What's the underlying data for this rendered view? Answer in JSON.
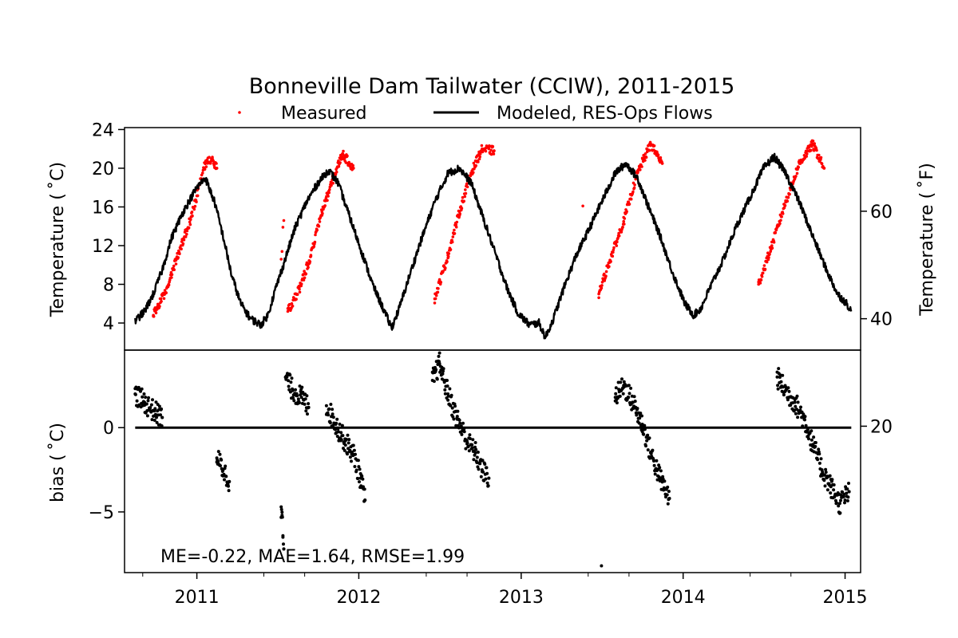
{
  "chart_data": {
    "type": "line",
    "title": "Bonneville Dam Tailwater (CCIW), 2011-2015",
    "legend": {
      "placement": "top-center",
      "entries": [
        {
          "name": "Measured",
          "marker": "dot",
          "color": "#ff0000"
        },
        {
          "name": "Modeled, RES-Ops Flows",
          "marker": "line",
          "color": "#000000"
        }
      ]
    },
    "x_axis": {
      "tick_labels": [
        "2011",
        "2012",
        "2013",
        "2014",
        "2015"
      ],
      "tick_years": [
        2011,
        2012,
        2013,
        2014,
        2015
      ],
      "range": [
        "2010-07-22",
        "2015-02-05"
      ]
    },
    "top_panel": {
      "ylabel_left": "Temperature ($^\\circ$C)",
      "ylabel_right": "Temperature ($^\\circ$F)",
      "ylabel_left_display": "Temperature ( ˚C)",
      "ylabel_right_display": "Temperature ( ˚F)",
      "ylim": [
        1.2,
        24.2
      ],
      "yticks_left": [
        "4",
        "8",
        "12",
        "16",
        "20",
        "24"
      ],
      "yticks_left_values": [
        4,
        8,
        12,
        16,
        20,
        24
      ],
      "yticks_right": [
        "20",
        "40",
        "60"
      ],
      "yticks_right_values": [
        20,
        40,
        60
      ],
      "series": [
        {
          "name": "Modeled, RES-Ops Flows",
          "color": "#000000",
          "points": [
            [
              "2010-08-15",
              4.2
            ],
            [
              "2010-09-05",
              5.2
            ],
            [
              "2010-09-25",
              7.0
            ],
            [
              "2010-10-15",
              9.5
            ],
            [
              "2010-11-05",
              12.8
            ],
            [
              "2010-12-01",
              15.5
            ],
            [
              "2011-01-01",
              18.0
            ],
            [
              "2011-01-20",
              19.0
            ],
            [
              "2011-02-10",
              16.5
            ],
            [
              "2011-03-01",
              13.0
            ],
            [
              "2011-03-20",
              9.0
            ],
            [
              "2011-04-10",
              6.0
            ],
            [
              "2011-05-01",
              4.5
            ],
            [
              "2011-05-25",
              3.8
            ],
            [
              "2011-06-10",
              4.8
            ],
            [
              "2011-06-25",
              7.2
            ],
            [
              "2011-07-15",
              10.0
            ],
            [
              "2011-08-10",
              13.8
            ],
            [
              "2011-09-05",
              16.5
            ],
            [
              "2011-10-01",
              18.5
            ],
            [
              "2011-10-25",
              19.8
            ],
            [
              "2011-11-15",
              18.5
            ],
            [
              "2011-12-15",
              14.5
            ],
            [
              "2012-01-10",
              11.0
            ],
            [
              "2012-02-01",
              8.0
            ],
            [
              "2012-02-20",
              6.0
            ],
            [
              "2012-03-15",
              3.5
            ],
            [
              "2012-04-01",
              5.5
            ],
            [
              "2012-04-25",
              9.0
            ],
            [
              "2012-05-20",
              12.5
            ],
            [
              "2012-06-20",
              16.5
            ],
            [
              "2012-07-20",
              19.5
            ],
            [
              "2012-08-15",
              20.0
            ],
            [
              "2012-09-10",
              18.5
            ],
            [
              "2012-10-10",
              14.5
            ],
            [
              "2012-11-05",
              11.0
            ],
            [
              "2012-12-01",
              7.5
            ],
            [
              "2012-12-25",
              5.0
            ],
            [
              "2013-01-20",
              3.8
            ],
            [
              "2013-02-10",
              4.0
            ],
            [
              "2013-02-25",
              2.5
            ],
            [
              "2013-03-15",
              4.5
            ],
            [
              "2013-04-10",
              8.0
            ],
            [
              "2013-05-05",
              11.0
            ],
            [
              "2013-06-01",
              13.5
            ],
            [
              "2013-07-01",
              16.5
            ],
            [
              "2013-08-01",
              19.5
            ],
            [
              "2013-08-25",
              20.5
            ],
            [
              "2013-09-20",
              19.0
            ],
            [
              "2013-10-15",
              16.0
            ],
            [
              "2013-11-10",
              13.0
            ],
            [
              "2013-12-10",
              9.0
            ],
            [
              "2014-01-05",
              6.0
            ],
            [
              "2014-01-25",
              4.8
            ],
            [
              "2014-02-10",
              5.5
            ],
            [
              "2014-03-01",
              7.5
            ],
            [
              "2014-04-01",
              10.5
            ],
            [
              "2014-05-01",
              14.0
            ],
            [
              "2014-06-01",
              17.0
            ],
            [
              "2014-07-01",
              20.0
            ],
            [
              "2014-07-25",
              21.2
            ],
            [
              "2014-08-20",
              19.5
            ],
            [
              "2014-09-20",
              16.5
            ],
            [
              "2014-10-20",
              13.0
            ],
            [
              "2014-11-20",
              9.5
            ],
            [
              "2014-12-15",
              7.0
            ],
            [
              "2015-01-05",
              6.0
            ],
            [
              "2015-01-15",
              5.2
            ]
          ]
        },
        {
          "name": "Measured",
          "color": "#ff0000",
          "points": [
            [
              "2010-09-25",
              4.8
            ],
            [
              "2010-10-20",
              7.0
            ],
            [
              "2010-11-15",
              10.5
            ],
            [
              "2010-12-20",
              15.0
            ],
            [
              "2011-01-20",
              20.5
            ],
            [
              "2011-02-05",
              21.0
            ],
            [
              "2011-02-15",
              20.0
            ],
            [
              "2011-07-10",
              10.6
            ],
            [
              "2011-07-12",
              11.4
            ],
            [
              "2011-07-14",
              13.9
            ],
            [
              "2011-07-16",
              14.6
            ],
            [
              "2011-07-25",
              5.2
            ],
            [
              "2011-08-20",
              7.5
            ],
            [
              "2011-09-15",
              11.0
            ],
            [
              "2011-10-10",
              15.5
            ],
            [
              "2011-11-05",
              19.0
            ],
            [
              "2011-11-25",
              21.5
            ],
            [
              "2011-12-20",
              20.0
            ],
            [
              "2012-06-20",
              6.5
            ],
            [
              "2012-07-20",
              11.0
            ],
            [
              "2012-08-15",
              15.5
            ],
            [
              "2012-09-10",
              19.5
            ],
            [
              "2012-10-05",
              22.0
            ],
            [
              "2012-11-01",
              21.8
            ],
            [
              "2013-05-20",
              16.1
            ],
            [
              "2013-06-25",
              7.0
            ],
            [
              "2013-07-20",
              10.5
            ],
            [
              "2013-08-20",
              14.5
            ],
            [
              "2013-09-20",
              19.5
            ],
            [
              "2013-10-20",
              22.5
            ],
            [
              "2013-11-15",
              20.5
            ],
            [
              "2014-06-20",
              8.0
            ],
            [
              "2014-07-20",
              12.0
            ],
            [
              "2014-08-20",
              16.5
            ],
            [
              "2014-09-20",
              20.5
            ],
            [
              "2014-10-20",
              22.5
            ],
            [
              "2014-11-15",
              20.0
            ]
          ]
        }
      ]
    },
    "bottom_panel": {
      "ylabel": "bias ($^\\circ$C)",
      "ylabel_display": "bias ( ˚C)",
      "ylim": [
        -8.6,
        4.6
      ],
      "yticks": [
        "−5",
        "0"
      ],
      "ytick_values": [
        -5,
        0
      ],
      "zero_line": {
        "y": 0,
        "from": "2010-08-15",
        "to": "2015-01-15"
      },
      "annotation": "ME=-0.22, MAE=1.64, RMSE=1.99",
      "series": [
        {
          "name": "bias",
          "color": "#000000",
          "segments": [
            [
              [
                "2010-08-15",
                2.0
              ],
              [
                "2010-09-05",
                1.5
              ],
              [
                "2010-09-25",
                1.0
              ],
              [
                "2010-10-15",
                0.6
              ]
            ],
            [
              [
                "2011-02-15",
                -1.8
              ],
              [
                "2011-03-01",
                -2.5
              ],
              [
                "2011-03-15",
                -3.2
              ]
            ],
            [
              [
                "2011-07-10",
                -4.7
              ],
              [
                "2011-07-12",
                -5.2
              ],
              [
                "2011-07-14",
                -6.5
              ],
              [
                "2011-07-16",
                -7.2
              ]
            ],
            [
              [
                "2011-07-20",
                3.0
              ],
              [
                "2011-08-05",
                2.2
              ],
              [
                "2011-08-25",
                1.8
              ],
              [
                "2011-09-10",
                1.2
              ]
            ],
            [
              [
                "2011-10-20",
                1.3
              ],
              [
                "2011-11-10",
                0.2
              ],
              [
                "2011-12-01",
                -0.8
              ],
              [
                "2011-12-20",
                -1.6
              ],
              [
                "2012-01-05",
                -3.0
              ],
              [
                "2012-01-15",
                -4.3
              ]
            ],
            [
              [
                "2012-06-15",
                2.8
              ],
              [
                "2012-07-01",
                3.8
              ],
              [
                "2012-07-20",
                2.0
              ],
              [
                "2012-08-10",
                0.5
              ],
              [
                "2012-09-01",
                -0.8
              ],
              [
                "2012-09-20",
                -1.5
              ],
              [
                "2012-10-05",
                -2.5
              ],
              [
                "2012-10-20",
                -3.0
              ]
            ],
            [
              [
                "2013-07-01",
                -8.2
              ]
            ],
            [
              [
                "2013-08-01",
                1.8
              ],
              [
                "2013-08-20",
                2.5
              ],
              [
                "2013-09-10",
                1.5
              ],
              [
                "2013-10-01",
                0.2
              ],
              [
                "2013-10-20",
                -1.5
              ],
              [
                "2013-11-10",
                -3.0
              ],
              [
                "2013-12-01",
                -4.2
              ]
            ],
            [
              [
                "2014-08-01",
                3.0
              ],
              [
                "2014-08-20",
                2.2
              ],
              [
                "2014-09-10",
                1.5
              ],
              [
                "2014-10-01",
                0.5
              ],
              [
                "2014-10-20",
                -1.0
              ],
              [
                "2014-11-10",
                -2.5
              ],
              [
                "2014-11-30",
                -3.5
              ],
              [
                "2014-12-20",
                -4.5
              ],
              [
                "2015-01-10",
                -3.8
              ]
            ]
          ]
        }
      ]
    }
  }
}
